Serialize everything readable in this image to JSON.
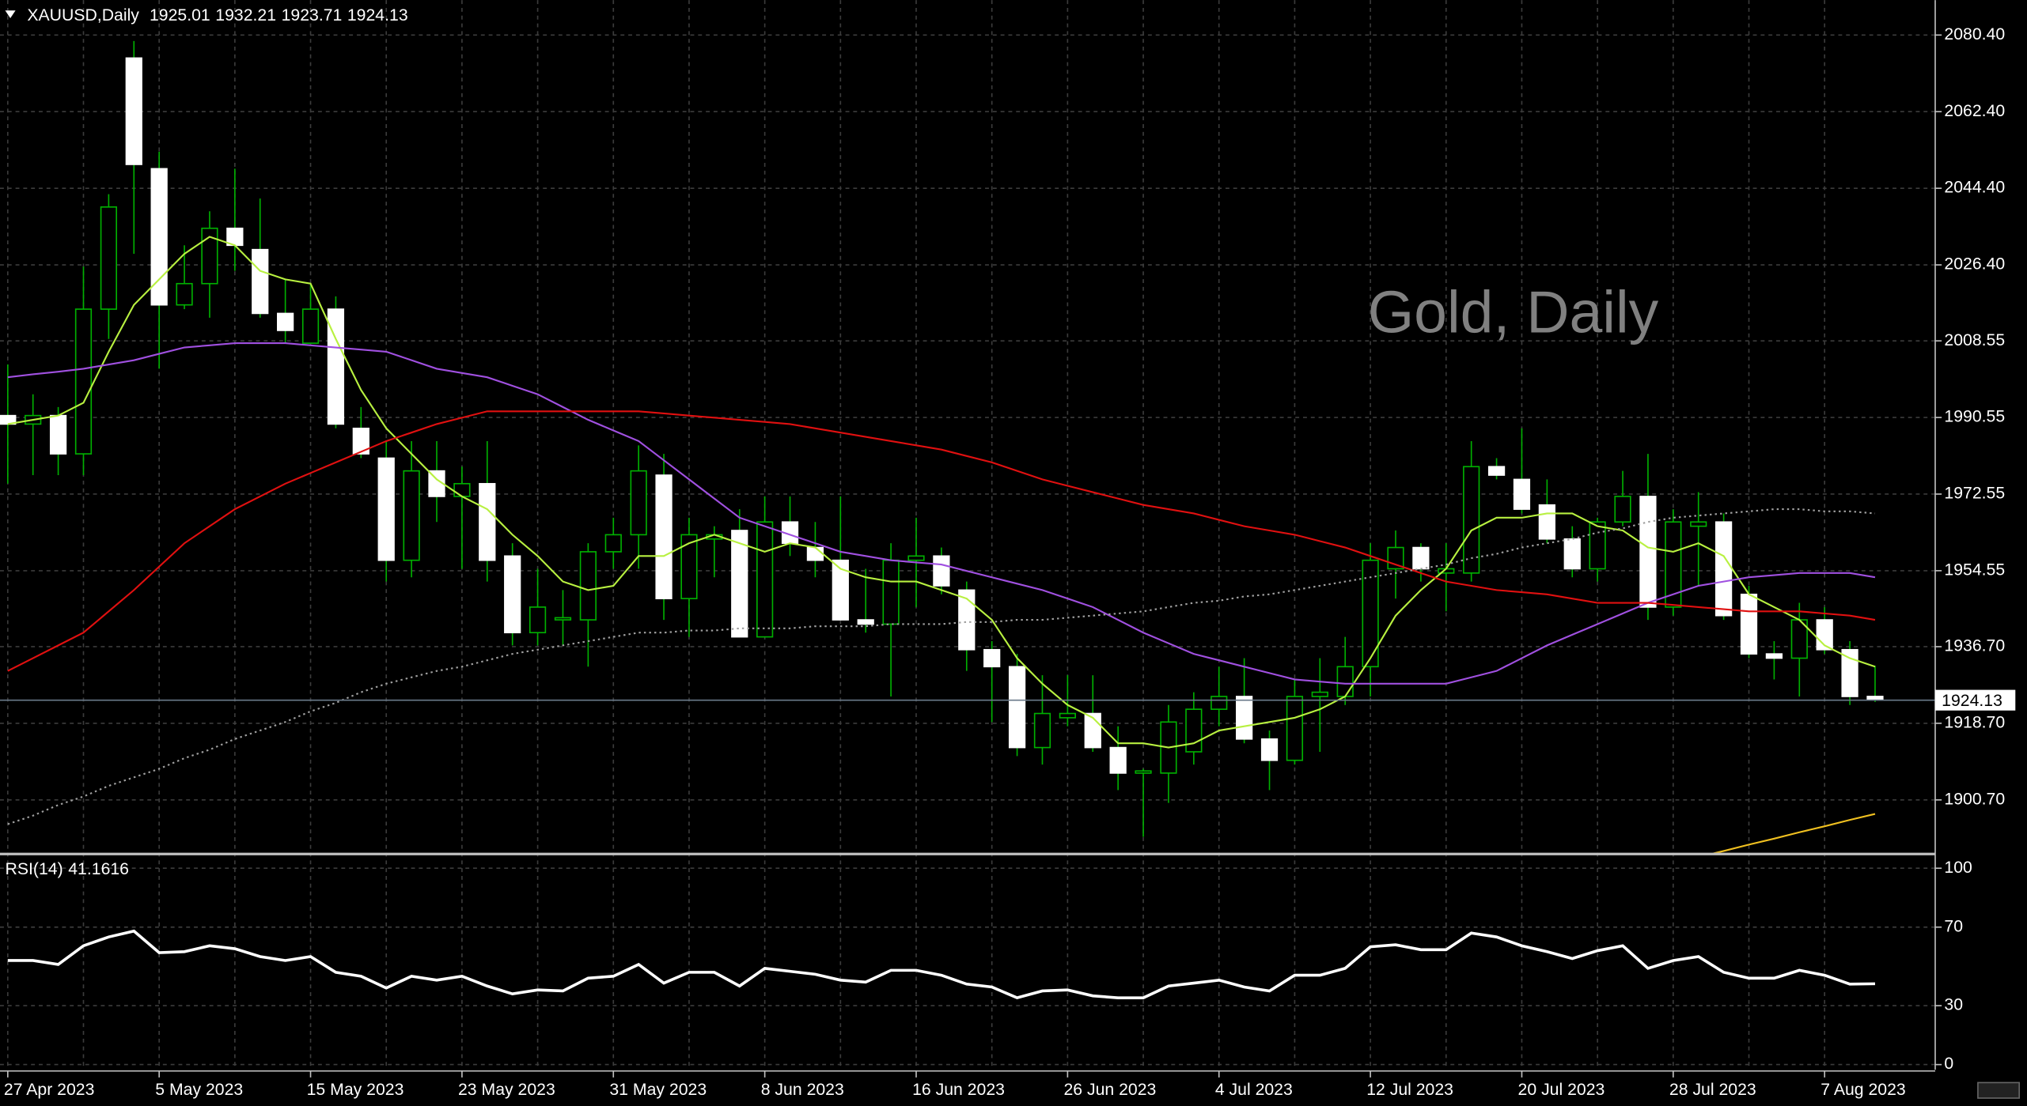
{
  "chart_data": [
    {
      "type": "candlestick",
      "title": "XAUUSD,Daily",
      "watermark": "Gold, Daily",
      "categories": [
        "27 Apr 2023",
        null,
        null,
        null,
        null,
        null,
        "5 May 2023",
        null,
        null,
        null,
        null,
        null,
        "15 May 2023",
        null,
        null,
        null,
        null,
        null,
        "23 May 2023",
        null,
        null,
        null,
        null,
        null,
        "31 May 2023",
        null,
        null,
        null,
        null,
        null,
        "8 Jun 2023",
        null,
        null,
        null,
        null,
        null,
        "16 Jun 2023",
        null,
        null,
        null,
        null,
        null,
        "26 Jun 2023",
        null,
        null,
        null,
        null,
        null,
        "4 Jul 2023",
        null,
        null,
        null,
        null,
        null,
        "12 Jul 2023",
        null,
        null,
        null,
        null,
        null,
        "20 Jul 2023",
        null,
        null,
        null,
        null,
        null,
        "28 Jul 2023",
        null,
        null,
        null,
        null,
        null,
        "7 Aug 2023",
        null,
        null
      ],
      "open": [
        1991,
        1989,
        1991,
        1982,
        2016,
        2075,
        2049,
        2017,
        2022,
        2035,
        2030,
        2015,
        2008,
        2016,
        1988,
        1981,
        1957,
        1978,
        1972,
        1975,
        1958,
        1940,
        1943,
        1943,
        1959,
        1963,
        1977,
        1948,
        1962,
        1964,
        1939,
        1966,
        1960,
        1957,
        1943,
        1942,
        1957,
        1958,
        1950,
        1936,
        1932,
        1913,
        1920,
        1921,
        1913,
        1907,
        1907,
        1912,
        1922,
        1925,
        1915,
        1910,
        1925,
        1925,
        1932,
        1955,
        1960,
        1954,
        1954,
        1979,
        1976,
        1970,
        1962,
        1955,
        1966,
        1972,
        1946,
        1965,
        1966,
        1949,
        1935,
        1934,
        1943,
        1936,
        1925.01
      ],
      "high": [
        2003,
        1996,
        1993,
        2026,
        2043,
        2079,
        2053,
        2031,
        2039,
        2049,
        2042,
        2023,
        2022,
        2019,
        1993,
        1985,
        1985,
        1985,
        1979,
        1985,
        1961,
        1955,
        1950,
        1961,
        1967,
        1984,
        1982,
        1967,
        1965,
        1969,
        1972,
        1972,
        1966,
        1972,
        1955,
        1961,
        1967,
        1960,
        1952,
        1938,
        1935,
        1930,
        1930,
        1930,
        1918,
        1908,
        1923,
        1926,
        1932,
        1934,
        1917,
        1929,
        1934,
        1939,
        1961,
        1964,
        1961,
        1961,
        1985,
        1981,
        1988,
        1976,
        1965,
        1967,
        1978,
        1982,
        1969,
        1973,
        1968,
        1951,
        1938,
        1947,
        1946,
        1938,
        1932.21
      ],
      "low": [
        1975,
        1977,
        1977,
        1977,
        2009,
        2029,
        2002,
        2016,
        2014,
        2025,
        2014,
        2008,
        2008,
        1988,
        1981,
        1952,
        1953,
        1966,
        1955,
        1952,
        1937,
        1937,
        1937,
        1932,
        1955,
        1955,
        1943,
        1939,
        1953,
        1939,
        1939,
        1958,
        1953,
        1943,
        1940,
        1925,
        1946,
        1949,
        1931,
        1919,
        1911,
        1909,
        1918,
        1912,
        1903,
        1892,
        1900,
        1909,
        1918,
        1914,
        1903,
        1909,
        1912,
        1923,
        1925,
        1948,
        1952,
        1945,
        1952,
        1976,
        1968,
        1961,
        1953,
        1952,
        1965,
        1943,
        1944,
        1951,
        1943,
        1934,
        1929,
        1925,
        1935,
        1923,
        1923.71
      ],
      "close": [
        1989,
        1991,
        1982,
        2016,
        2040,
        2050,
        2017,
        2022,
        2035,
        2031,
        2015,
        2011,
        2016,
        1989,
        1982,
        1957,
        1978,
        1972,
        1975,
        1957,
        1940,
        1946,
        1943.5,
        1959,
        1963,
        1978,
        1948,
        1963,
        1963,
        1939,
        1966,
        1961,
        1957,
        1943,
        1942,
        1957,
        1958,
        1951,
        1936,
        1932,
        1913,
        1921,
        1921,
        1913,
        1907,
        1907.5,
        1919,
        1922,
        1925,
        1915,
        1910,
        1925,
        1926,
        1932,
        1957,
        1960,
        1955,
        1955,
        1979,
        1977,
        1969,
        1962,
        1955,
        1966,
        1972,
        1946,
        1966,
        1966,
        1944,
        1935,
        1934,
        1943,
        1936,
        1925,
        1924.13
      ],
      "up_color": "#000000",
      "down_color": "#ffffff",
      "wick_color": "#00b000",
      "series": [
        {
          "color": "#b8f040",
          "values": [
            1989,
            1990,
            1991,
            1994,
            2006,
            2017,
            2023,
            2029,
            2033,
            2031,
            2025,
            2023,
            2022,
            2009,
            1997,
            1988,
            1982,
            1976,
            1972,
            1969,
            1963,
            1958,
            1952,
            1950,
            1951,
            1958,
            1958,
            1961,
            1963,
            1961,
            1959,
            1961,
            1960,
            1955,
            1953,
            1952,
            1952,
            1950,
            1948,
            1943,
            1934,
            1928,
            1923,
            1920,
            1914,
            1914,
            1913,
            1914,
            1917,
            1918,
            1919,
            1920,
            1922,
            1925,
            1934,
            1944,
            1950,
            1955,
            1964,
            1967,
            1967,
            1968,
            1968,
            1965,
            1964,
            1960,
            1959,
            1961,
            1958,
            1949,
            1946,
            1943,
            1937,
            1934,
            1932
          ]
        },
        {
          "color": "#a050e0",
          "values": [
            2000,
            2000.7,
            2001.3,
            2002,
            2003,
            2004,
            2005.5,
            2007,
            2007.5,
            2008,
            2008,
            2008,
            2007.5,
            2007,
            2006.5,
            2006,
            2004,
            2002,
            2001,
            2000,
            1998,
            1996,
            1993,
            1990,
            1987.5,
            1985,
            1980.5,
            1976,
            1971.5,
            1967,
            1965,
            1963,
            1961,
            1959,
            1958,
            1957,
            1956.5,
            1956,
            1954.5,
            1953,
            1951.5,
            1950,
            1948,
            1946,
            1943,
            1940,
            1937.5,
            1935,
            1933.5,
            1932,
            1930.5,
            1929,
            1928.5,
            1928,
            1928,
            1928,
            1928,
            1928,
            1929.5,
            1931,
            1934,
            1937,
            1939.5,
            1942,
            1944.5,
            1947,
            1949,
            1951,
            1952,
            1953,
            1953.5,
            1954,
            1954,
            1954,
            1953
          ]
        },
        {
          "color": "#e01010",
          "values": [
            1931,
            1934,
            1937,
            1940,
            1945,
            1950,
            1955.5,
            1961,
            1965,
            1969,
            1972,
            1975,
            1977.5,
            1980,
            1982.5,
            1985,
            1987,
            1989,
            1990.5,
            1992,
            1992,
            1992,
            1992,
            1992,
            1992,
            1992,
            1991.5,
            1991,
            1990.5,
            1990,
            1989.5,
            1989,
            1988,
            1987,
            1986,
            1985,
            1984,
            1983,
            1981.5,
            1980,
            1978,
            1976,
            1974.5,
            1973,
            1971.5,
            1970,
            1969,
            1968,
            1966.5,
            1965,
            1964,
            1963,
            1961.5,
            1960,
            1958,
            1956,
            1954,
            1952,
            1951,
            1950,
            1949.5,
            1949,
            1948,
            1947,
            1947,
            1947,
            1946.5,
            1946,
            1945.5,
            1945,
            1945,
            1945,
            1944.5,
            1944,
            1943
          ]
        },
        {
          "color": "#a0a0a0",
          "dotted": true,
          "values": [
            1895,
            1897,
            1899.5,
            1901.5,
            1904,
            1906,
            1908,
            1910.5,
            1912.5,
            1915,
            1917,
            1919,
            1921.5,
            1923.5,
            1926,
            1928,
            1929.5,
            1931,
            1932,
            1933.5,
            1935,
            1936,
            1937,
            1938,
            1939,
            1940,
            1940,
            1940.5,
            1940.5,
            1941,
            1941,
            1941,
            1941.5,
            1941.5,
            1941.5,
            1942,
            1942,
            1942,
            1942.5,
            1942.5,
            1943,
            1943,
            1943.5,
            1944,
            1944.5,
            1945,
            1946,
            1947,
            1947.5,
            1948.5,
            1949,
            1950,
            1951,
            1952,
            1953,
            1954,
            1955,
            1956,
            1957.5,
            1958.5,
            1960,
            1961,
            1962,
            1963.5,
            1964.5,
            1966,
            1967,
            1967.5,
            1968,
            1968.5,
            1969,
            1969,
            1968.5,
            1968.5,
            1968
          ]
        },
        {
          "color": "#f0c020",
          "values": [
            null,
            null,
            null,
            null,
            null,
            null,
            null,
            null,
            null,
            null,
            null,
            null,
            null,
            null,
            null,
            null,
            null,
            null,
            null,
            null,
            null,
            null,
            null,
            null,
            null,
            null,
            null,
            null,
            null,
            null,
            null,
            null,
            null,
            null,
            null,
            null,
            null,
            null,
            null,
            null,
            null,
            null,
            null,
            null,
            null,
            null,
            null,
            null,
            null,
            null,
            null,
            null,
            null,
            null,
            null,
            null,
            null,
            null,
            null,
            null,
            null,
            null,
            null,
            null,
            null,
            null,
            null,
            1887.3,
            1888.7,
            1890.2,
            1891.6,
            1893.1,
            1894.5,
            1896.0,
            1897.4
          ]
        }
      ],
      "ylim": [
        1888.3,
        2088.6
      ],
      "yticks": [
        {
          "value": 2080.4,
          "label": "2080.40"
        },
        {
          "value": 2062.4,
          "label": "2062.40"
        },
        {
          "value": 2044.4,
          "label": "2044.40"
        },
        {
          "value": 2026.4,
          "label": "2026.40"
        },
        {
          "value": 2008.55,
          "label": "2008.55"
        },
        {
          "value": 1990.55,
          "label": "1990.55"
        },
        {
          "value": 1972.55,
          "label": "1972.55"
        },
        {
          "value": 1954.55,
          "label": "1954.55"
        },
        {
          "value": 1936.7,
          "label": "1936.70"
        },
        {
          "value": 1918.7,
          "label": "1918.70"
        },
        {
          "value": 1900.7,
          "label": "1900.70"
        }
      ],
      "grid": true
    },
    {
      "type": "line",
      "title": "RSI(14)",
      "color": "#ffffff",
      "values": [
        53,
        53,
        51,
        60.5,
        65,
        68,
        57,
        57.5,
        60.5,
        59,
        55,
        53,
        55,
        47,
        45,
        39,
        45,
        43,
        45,
        40,
        36,
        38,
        37.5,
        44,
        45,
        51,
        41.5,
        47,
        47,
        40,
        49,
        47.5,
        46,
        43,
        42,
        48,
        48,
        45.5,
        41,
        39.5,
        34,
        37.5,
        38,
        35,
        34,
        34,
        40,
        41.5,
        43,
        39.5,
        37.5,
        45.5,
        45.5,
        49,
        60,
        61,
        58.5,
        58.5,
        67,
        65,
        60.5,
        57.5,
        54,
        58,
        60.5,
        49,
        53,
        55,
        47,
        44,
        44,
        48,
        45.5,
        41,
        41.1616
      ],
      "ylim": [
        -2.6,
        106.6
      ],
      "yticks": [
        100,
        70,
        30,
        0
      ],
      "grid": true
    }
  ]
}
